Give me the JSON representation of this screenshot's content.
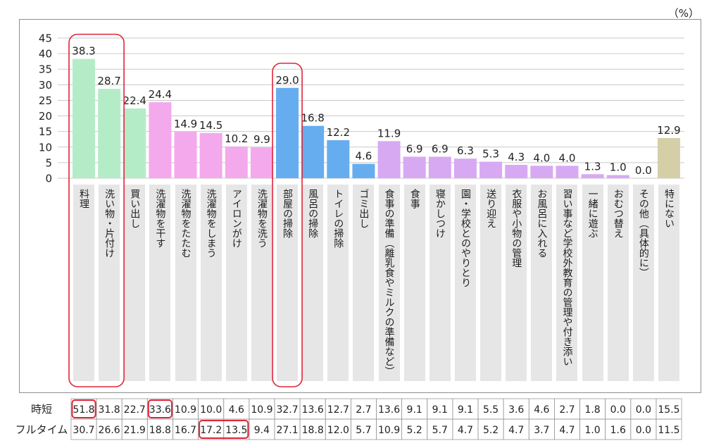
{
  "unit_label": "（%）",
  "highlight_color": "#e0263a",
  "chart_data": {
    "type": "bar",
    "categories": [
      "料理",
      "洗い物・片付け",
      "買い出し",
      "洗濯物を干す",
      "洗濯物をたたむ",
      "洗濯物をしまう",
      "アイロンがけ",
      "洗濯物を洗う",
      "部屋の掃除",
      "風呂の掃除",
      "トイレの掃除",
      "ゴミ出し",
      "食事の準備（離乳食やミルクの準備など）",
      "食事",
      "寝かしつけ",
      "園・学校とのやりとり",
      "送り迎え",
      "衣服や小物の管理",
      "お風呂に入れる",
      "習い事など学校外教育の管理や付き添い",
      "一緒に遊ぶ",
      "おむつ替え",
      "その他（具体的に）",
      "特にない"
    ],
    "values": [
      38.3,
      28.7,
      22.4,
      24.4,
      14.9,
      14.5,
      10.2,
      9.9,
      29.0,
      16.8,
      12.2,
      4.6,
      11.9,
      6.9,
      6.9,
      6.3,
      5.3,
      4.3,
      4.0,
      4.0,
      1.3,
      1.0,
      0.0,
      12.9
    ],
    "colors": [
      "#b5ecc8",
      "#b5ecc8",
      "#b5ecc8",
      "#f4a9ec",
      "#f4a9ec",
      "#f4a9ec",
      "#f4a9ec",
      "#f4a9ec",
      "#66adf0",
      "#66adf0",
      "#66adf0",
      "#66adf0",
      "#d8a9f3",
      "#d8a9f3",
      "#d8a9f3",
      "#d8a9f3",
      "#d8a9f3",
      "#d8a9f3",
      "#d8a9f3",
      "#d8a9f3",
      "#d8a9f3",
      "#d8a9f3",
      "#d8a9f3",
      "#d5cfa7"
    ],
    "ylim": [
      0,
      45
    ],
    "yticks": [
      0,
      5,
      10,
      15,
      20,
      25,
      30,
      35,
      40,
      45
    ],
    "grid": true,
    "legend": "none",
    "highlighted_categories": [
      [
        0,
        1
      ],
      [
        8
      ]
    ]
  },
  "table": {
    "rows": [
      {
        "label": "時短",
        "values": [
          51.8,
          31.8,
          22.7,
          33.6,
          10.9,
          10.0,
          4.6,
          10.9,
          32.7,
          13.6,
          12.7,
          2.7,
          13.6,
          9.1,
          9.1,
          9.1,
          5.5,
          3.6,
          4.6,
          2.7,
          1.8,
          0.0,
          0.0,
          15.5
        ],
        "highlighted": [
          [
            0,
            0
          ],
          [
            3,
            3
          ]
        ]
      },
      {
        "label": "フルタイム",
        "values": [
          30.7,
          26.6,
          21.9,
          18.8,
          16.7,
          17.2,
          13.5,
          9.4,
          27.1,
          18.8,
          12.0,
          5.7,
          10.9,
          5.2,
          5.7,
          4.7,
          5.2,
          4.7,
          3.7,
          4.7,
          1.0,
          1.6,
          0.0,
          11.5
        ],
        "highlighted": [
          [
            5,
            6
          ]
        ]
      }
    ]
  }
}
